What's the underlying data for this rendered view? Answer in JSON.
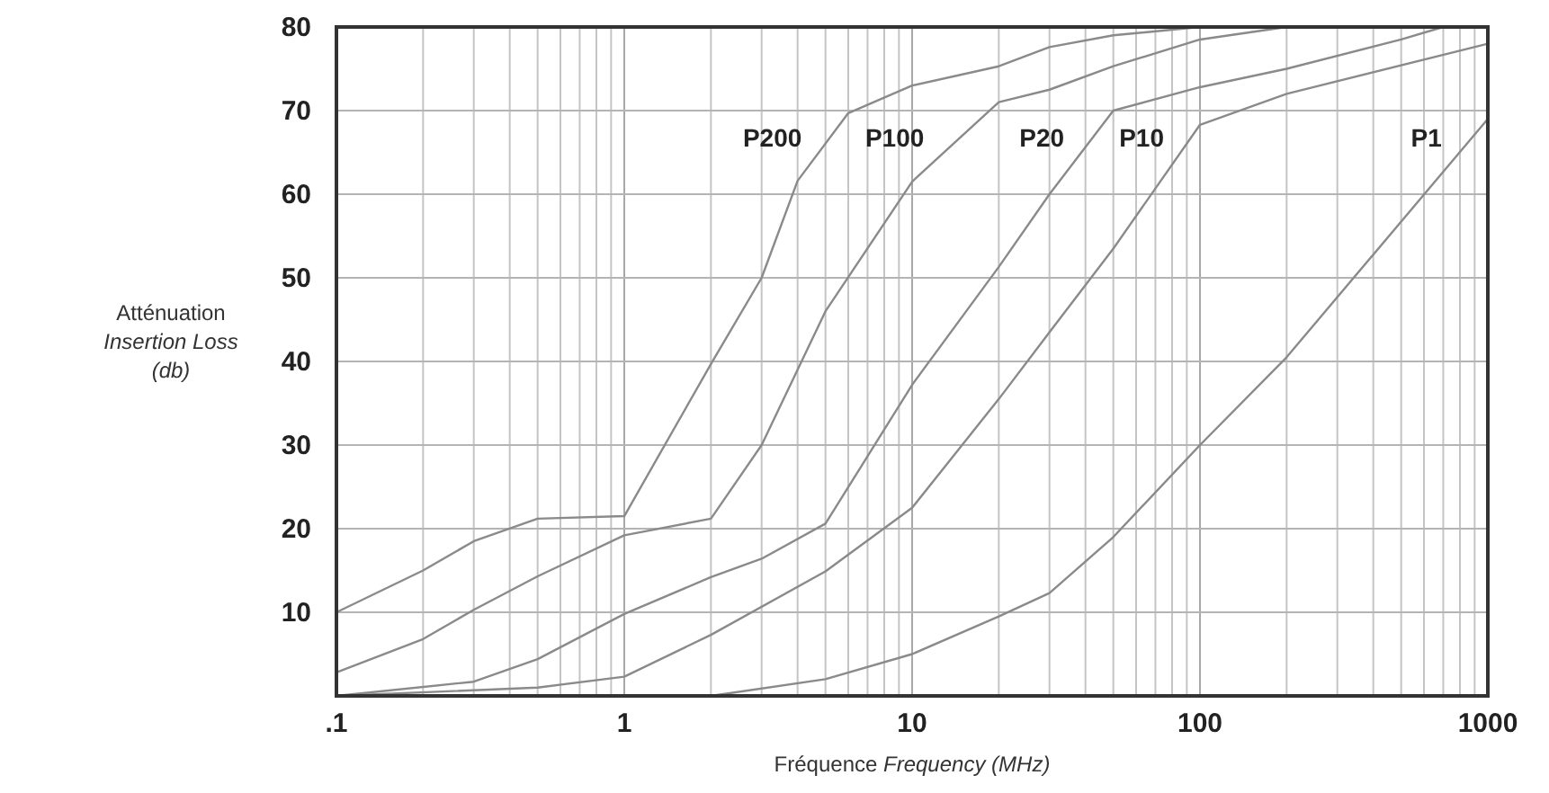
{
  "chart_data": {
    "type": "line",
    "xlabel": "Fréquence Frequency (MHz)",
    "ylabel": "Atténuation\nInsertion Loss\n(db)",
    "log": "x",
    "grid": true,
    "line_style": "solid",
    "xlim": [
      0.1,
      1000
    ],
    "xticks": [
      {
        "value": 0.1,
        "label": ".1"
      },
      1,
      10,
      100,
      1000
    ],
    "ylim": [
      0,
      80
    ],
    "yticks": [
      10,
      20,
      30,
      40,
      50,
      60,
      70,
      80
    ],
    "series": [
      {
        "name": "P200",
        "color": "#8a8a8a",
        "x": [
          0.1,
          0.2,
          0.3,
          0.5,
          1,
          2,
          3,
          4,
          6,
          10,
          20,
          30,
          50,
          100
        ],
        "values": [
          10,
          15,
          18.5,
          21.2,
          21.5,
          39.7,
          50,
          61.6,
          69.7,
          73,
          75.3,
          77.6,
          79,
          80
        ]
      },
      {
        "name": "P100",
        "color": "#8a8a8a",
        "x": [
          0.1,
          0.2,
          0.3,
          0.5,
          1,
          2,
          3,
          5,
          10,
          20,
          30,
          50,
          100,
          200
        ],
        "values": [
          2.8,
          6.8,
          10.3,
          14.3,
          19.2,
          21.2,
          30,
          46,
          61.5,
          71,
          72.5,
          75.3,
          78.5,
          80
        ]
      },
      {
        "name": "P20",
        "color": "#8a8a8a",
        "x": [
          0.1,
          0.3,
          0.5,
          1,
          2,
          3,
          5,
          10,
          20,
          30,
          50,
          100,
          200,
          500,
          700
        ],
        "values": [
          0,
          1.7,
          4.4,
          9.8,
          14.2,
          16.4,
          20.6,
          37.2,
          51.3,
          60,
          70,
          72.8,
          75,
          78.5,
          80
        ]
      },
      {
        "name": "P10",
        "color": "#8a8a8a",
        "x": [
          0.1,
          0.5,
          1,
          2,
          5,
          10,
          20,
          30,
          50,
          100,
          200,
          1000
        ],
        "values": [
          0,
          1,
          2.3,
          7.3,
          14.9,
          22.5,
          35.5,
          43.5,
          53.5,
          68.3,
          72,
          78
        ]
      },
      {
        "name": "P1",
        "color": "#8a8a8a",
        "x": [
          0.1,
          2,
          5,
          10,
          20,
          30,
          50,
          100,
          200,
          1000
        ],
        "values": [
          0,
          0,
          2,
          5,
          9.5,
          12.3,
          19,
          30,
          40.5,
          69
        ]
      }
    ]
  }
}
